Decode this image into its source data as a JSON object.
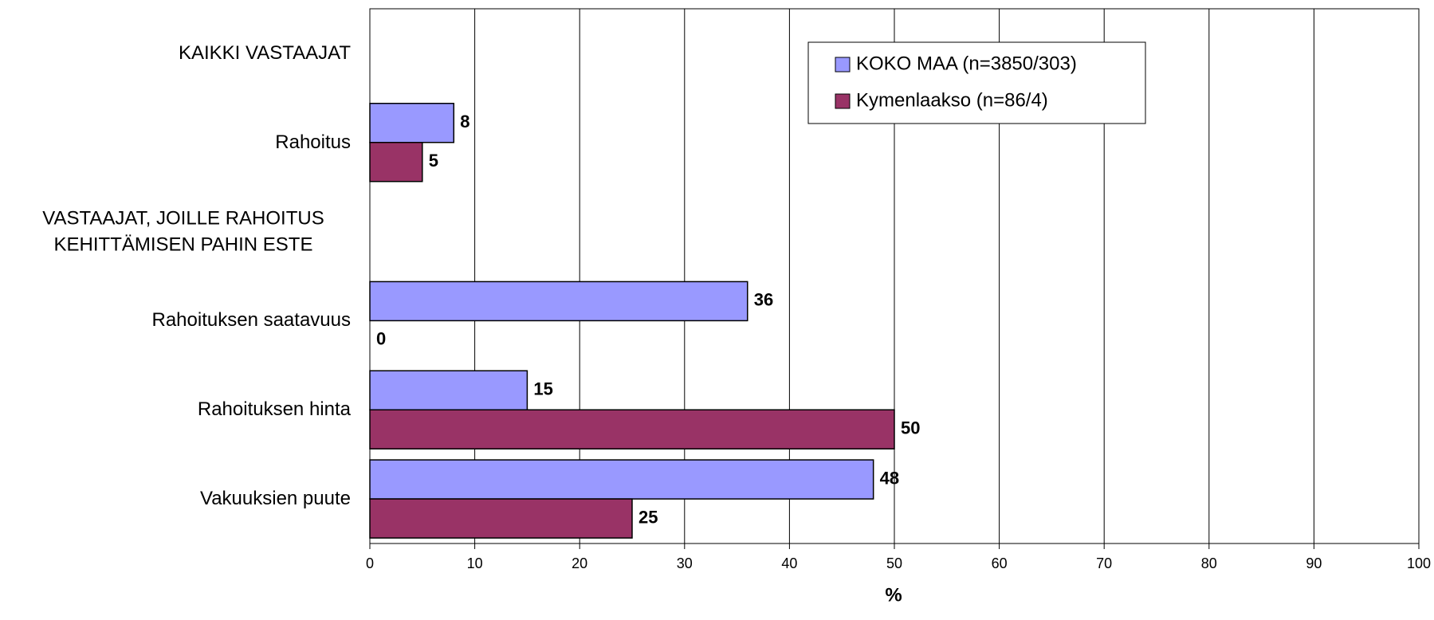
{
  "chart_data": {
    "type": "hbar",
    "categories": [
      "KAIKKI VASTAAJAT",
      "Rahoitus",
      "VASTAAJAT, JOILLE RAHOITUS KEHITTÄMISEN PAHIN ESTE",
      "Rahoituksen saatavuus",
      "Rahoituksen hinta",
      "Vakuuksien puute"
    ],
    "series": [
      {
        "name": "KOKO MAA (n=3850/303)",
        "color": "#9999ff",
        "values": [
          null,
          8,
          null,
          36,
          15,
          48
        ]
      },
      {
        "name": "Kymenlaakso (n=86/4)",
        "color": "#993366",
        "values": [
          null,
          5,
          null,
          0,
          50,
          25
        ]
      }
    ],
    "xlabel": "%",
    "xlim": [
      0,
      100
    ],
    "xticks": [
      0,
      10,
      20,
      30,
      40,
      50,
      60,
      70,
      80,
      90,
      100
    ],
    "grid": true,
    "legend": "top-right"
  }
}
